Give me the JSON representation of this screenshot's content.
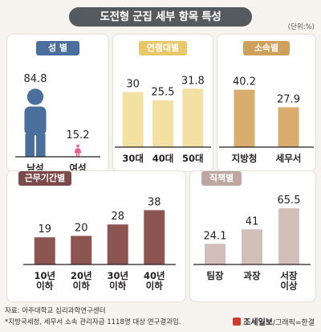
{
  "title": "도전형 군집 세부 항목 특성",
  "unit": "(단위:%)",
  "colors": {
    "gender_tag": "#4a6f9d",
    "age_tag": "#e9c86a",
    "affiliation_tag": "#cf9f5c",
    "tenure_tag": "#7c4a49",
    "position_tag": "#bfa7a1",
    "male": "#4a6f9d",
    "female": "#e8618c",
    "age_bar": "#f3e1a4",
    "affiliation_bar": "#d8ad6e",
    "tenure_bar": "#8d5552",
    "position_bar": "#d3bfba"
  },
  "panels": {
    "gender": "성 별",
    "age": "연령대별",
    "affiliation": "소속별",
    "tenure": "근무기간별",
    "position": "직책별"
  },
  "chart_data": [
    {
      "type": "bar",
      "title": "성 별",
      "categories": [
        "남성",
        "여성"
      ],
      "values": [
        84.8,
        15.2
      ],
      "icons": [
        "male-person-icon",
        "female-person-icon"
      ]
    },
    {
      "type": "bar",
      "title": "연령대별",
      "categories": [
        "30대",
        "40대",
        "50대"
      ],
      "values": [
        30,
        25.5,
        31.8
      ]
    },
    {
      "type": "bar",
      "title": "소속별",
      "categories": [
        "지방청",
        "세무서"
      ],
      "values": [
        40.2,
        27.9
      ]
    },
    {
      "type": "bar",
      "title": "근무기간별",
      "categories": [
        "10년 이하",
        "20년 이하",
        "30년 이하",
        "40년 이하"
      ],
      "values": [
        19,
        20,
        28,
        38
      ]
    },
    {
      "type": "bar",
      "title": "직책별",
      "categories": [
        "팀장",
        "과장",
        "서장 이상"
      ],
      "values": [
        24.1,
        41,
        65.5
      ]
    }
  ],
  "footer": {
    "source": "자료: 아주대학교 심리과학연구센터",
    "note": "*지방국세청, 세무서 소속 관리자급 1118명 대상 연구결과임.",
    "brand": "조세일보",
    "credit": "/그래픽=한결"
  }
}
